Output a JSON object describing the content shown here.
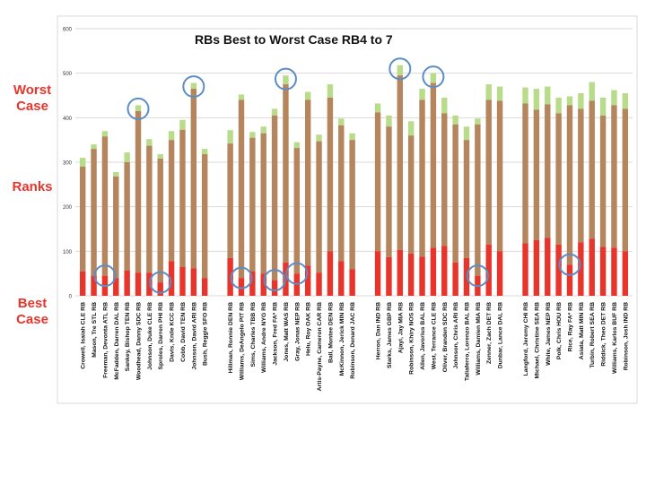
{
  "side_labels": {
    "worst": "Worst\nCase",
    "ranks": "Ranks",
    "best": "Best\nCase"
  },
  "colors": {
    "best": "#e8352c",
    "middle": "#b5855e",
    "worst": "#b9dc8a",
    "circle": "#5b8ec6",
    "grid": "#d9d9d9",
    "label": "#e8352c"
  },
  "chart_data": {
    "type": "bar",
    "stacked": true,
    "title": "RBs Best to Worst Case RB4 to 7",
    "ylim": [
      0,
      600
    ],
    "yticks": [
      0,
      100,
      200,
      300,
      400,
      500,
      600
    ],
    "grid": true,
    "groups": [
      {
        "players": [
          {
            "name": "Crowell, Isaiah CLE RB",
            "best": 55,
            "mid": 290,
            "worst": 310
          },
          {
            "name": "Mason, Tre STL RB",
            "best": 45,
            "mid": 330,
            "worst": 340
          },
          {
            "name": "Freeman, Devonta ATL RB",
            "best": 45,
            "mid": 358,
            "worst": 370,
            "circled": "best"
          },
          {
            "name": "McFadden, Darren DAL RB",
            "best": 40,
            "mid": 268,
            "worst": 278
          },
          {
            "name": "Sankey, Bishop TEN RB",
            "best": 57,
            "mid": 300,
            "worst": 322
          },
          {
            "name": "Woodhead, Danny SDC RB",
            "best": 52,
            "mid": 415,
            "worst": 428,
            "circled": "worst"
          },
          {
            "name": "Johnson, Duke CLE RB",
            "best": 52,
            "mid": 337,
            "worst": 352
          },
          {
            "name": "Sproles, Darren PHI RB",
            "best": 30,
            "mid": 308,
            "worst": 318,
            "circled": "best"
          },
          {
            "name": "Davis, Knile KCC RB",
            "best": 78,
            "mid": 350,
            "worst": 370
          },
          {
            "name": "Cobb, David TEN RB",
            "best": 65,
            "mid": 373,
            "worst": 395
          },
          {
            "name": "Johnson, David ARI RB",
            "best": 62,
            "mid": 465,
            "worst": 478,
            "circled": "worst"
          },
          {
            "name": "Bush, Reggie SFO RB",
            "best": 40,
            "mid": 318,
            "worst": 330
          }
        ]
      },
      {
        "players": [
          {
            "name": "Hillman, Ronnie DEN RB",
            "best": 85,
            "mid": 342,
            "worst": 372
          },
          {
            "name": "Williams, DeAngelo PIT RB",
            "best": 40,
            "mid": 440,
            "worst": 452,
            "circled": "best"
          },
          {
            "name": "Sims, Charles TBB RB",
            "best": 55,
            "mid": 355,
            "worst": 368
          },
          {
            "name": "Williams, Andre NYG RB",
            "best": 50,
            "mid": 365,
            "worst": 380
          },
          {
            "name": "Jackson, Fred FA* RB",
            "best": 35,
            "mid": 405,
            "worst": 420,
            "circled": "best"
          },
          {
            "name": "Jones, Matt WAS RB",
            "best": 75,
            "mid": 475,
            "worst": 495,
            "circled": "worst"
          },
          {
            "name": "Gray, Jonas NEP RB",
            "best": 50,
            "mid": 332,
            "worst": 345,
            "circled": "best"
          },
          {
            "name": "Helu, Roy OAK RB",
            "best": 68,
            "mid": 440,
            "worst": 458
          },
          {
            "name": "Artis-Payne, Cameron CAR RB",
            "best": 52,
            "mid": 347,
            "worst": 362
          },
          {
            "name": "Ball, Montee DEN RB",
            "best": 100,
            "mid": 445,
            "worst": 475
          },
          {
            "name": "McKinnon, Jerick MIN RB",
            "best": 78,
            "mid": 383,
            "worst": 398
          },
          {
            "name": "Robinson, Denard JAC RB",
            "best": 60,
            "mid": 350,
            "worst": 365
          }
        ]
      },
      {
        "players": [
          {
            "name": "Herron, Dan IND RB",
            "best": 100,
            "mid": 412,
            "worst": 432
          },
          {
            "name": "Starks, James GBP RB",
            "best": 87,
            "mid": 380,
            "worst": 405
          },
          {
            "name": "Ajayi, Jay MIA RB",
            "best": 103,
            "mid": 495,
            "worst": 518,
            "circled": "worst"
          },
          {
            "name": "Robinson, Khiry NOS RB",
            "best": 95,
            "mid": 360,
            "worst": 392
          },
          {
            "name": "Allen, Javorius BAL RB",
            "best": 88,
            "mid": 440,
            "worst": 465
          },
          {
            "name": "West, Terrance CLE RB",
            "best": 108,
            "mid": 478,
            "worst": 500,
            "circled": "worst"
          },
          {
            "name": "Oliver, Branden SDC RB",
            "best": 112,
            "mid": 410,
            "worst": 445
          },
          {
            "name": "Johnson, Chris ARI RB",
            "best": 75,
            "mid": 385,
            "worst": 405
          },
          {
            "name": "Taliaferro, Lorenzo BAL RB",
            "best": 85,
            "mid": 350,
            "worst": 380
          },
          {
            "name": "Williams, Damien MIA RB",
            "best": 45,
            "mid": 385,
            "worst": 398,
            "circled": "best"
          },
          {
            "name": "Zenner, Zach DET RB",
            "best": 115,
            "mid": 440,
            "worst": 475
          },
          {
            "name": "Dunbar, Lance DAL RB",
            "best": 100,
            "mid": 438,
            "worst": 470
          }
        ]
      },
      {
        "players": [
          {
            "name": "Langford, Jeremy CHI RB",
            "best": 118,
            "mid": 432,
            "worst": 468
          },
          {
            "name": "Michael, Christine SEA RB",
            "best": 125,
            "mid": 418,
            "worst": 465
          },
          {
            "name": "White, James NEP RB",
            "best": 130,
            "mid": 430,
            "worst": 470
          },
          {
            "name": "Polk, Chris HOU RB",
            "best": 115,
            "mid": 410,
            "worst": 445
          },
          {
            "name": "Rice, Ray FA* RB",
            "best": 70,
            "mid": 428,
            "worst": 448,
            "circled": "best"
          },
          {
            "name": "Asiata, Matt MIN RB",
            "best": 120,
            "mid": 420,
            "worst": 455
          },
          {
            "name": "Turbin, Robert SEA RB",
            "best": 128,
            "mid": 438,
            "worst": 480
          },
          {
            "name": "Riddick, Theo DET RB",
            "best": 110,
            "mid": 405,
            "worst": 445
          },
          {
            "name": "Williams, Karlos BUF RB",
            "best": 108,
            "mid": 428,
            "worst": 462
          },
          {
            "name": "Robinson, Josh IND RB",
            "best": 100,
            "mid": 420,
            "worst": 455
          }
        ]
      }
    ]
  }
}
